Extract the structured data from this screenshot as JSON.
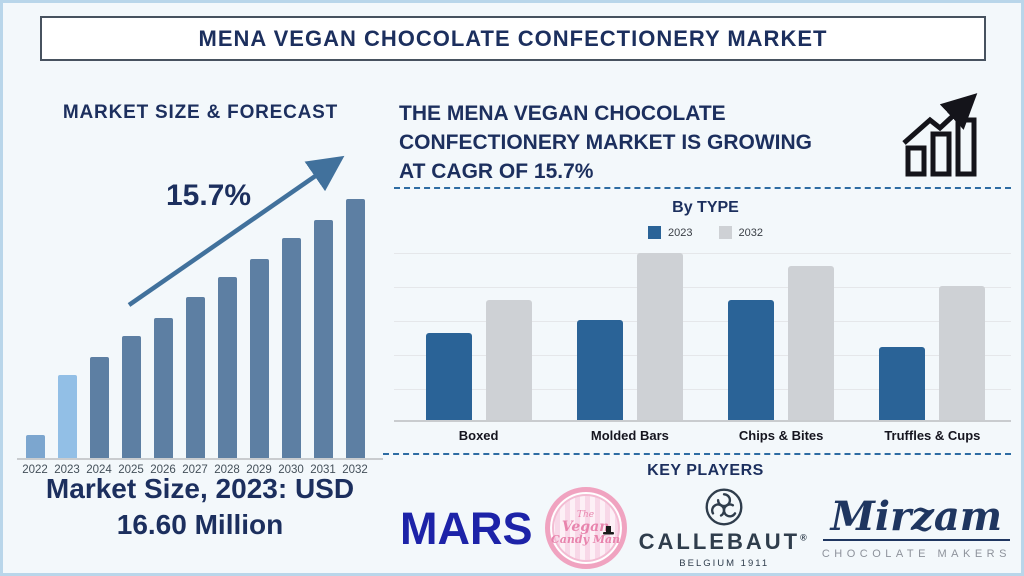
{
  "page": {
    "title": "MENA VEGAN CHOCOLATE CONFECTIONERY MARKET"
  },
  "colors": {
    "bg": "#f3f8fb",
    "frame": "#b9d6ea",
    "navy": "#1c2f5e",
    "axis": "#c9cccf",
    "grid": "#e5e7ea",
    "dash": "#2d6ca3",
    "arrow": "#41719c",
    "year_label": "#44505a",
    "cat_label": "#15151f",
    "mars_blue": "#1d23a8",
    "pink": "#f0a3c0",
    "pink_text": "#e884ad",
    "callebaut": "#2f3d4c",
    "mirzam_navy": "#1f3660",
    "makers_gray": "#8d929b",
    "icon_black": "#14141a"
  },
  "right_panel": {
    "heading_lines": [
      "THE MENA VEGAN CHOCOLATE",
      "CONFECTIONERY MARKET IS GROWING",
      "AT CAGR OF 15.7%"
    ],
    "key_players": {
      "heading": "KEY PLAYERS",
      "mars": {
        "name": "MARS",
        "wordmark": "MARS"
      },
      "vegan_candy_man": {
        "name": "The Vegan Candy Man",
        "lines": [
          "The",
          "Vegan",
          "Candy Man"
        ]
      },
      "callebaut": {
        "name": "CALLEBAUT",
        "wordmark": "CALLEBAUT",
        "registered": "®",
        "subtitle": "BELGIUM 1911"
      },
      "mirzam": {
        "name": "Mirzam",
        "wordmark": "Mirzam",
        "subtitle": "CHOCOLATE MAKERS"
      }
    }
  },
  "chart_data": [
    {
      "type": "bar",
      "title": "MARKET SIZE & FORECAST",
      "annotation": "15.7%",
      "caption_line1": "Market Size, 2023: USD",
      "caption_line2": "16.60 Million",
      "known_values": {
        "2023_usd_million": 16.6,
        "cagr_percent": 15.7
      },
      "categories": [
        "2022",
        "2023",
        "2024",
        "2025",
        "2026",
        "2027",
        "2028",
        "2029",
        "2030",
        "2031",
        "2032"
      ],
      "values_relative": [
        9,
        32,
        39,
        47,
        54,
        62,
        70,
        77,
        85,
        92,
        100
      ],
      "bar_colors": [
        "#7ca6cf",
        "#92bfe6",
        "#5d7fa3",
        "#5d7fa3",
        "#5d7fa3",
        "#5d7fa3",
        "#5d7fa3",
        "#5d7fa3",
        "#5d7fa3",
        "#5d7fa3",
        "#5d7fa3"
      ],
      "ylabel": "",
      "xlabel": "",
      "note": "y-axis unlabeled; values are relative bar heights (2032 = 100)"
    },
    {
      "type": "bar",
      "title": "By TYPE",
      "categories": [
        "Boxed",
        "Molded Bars",
        "Chips & Bites",
        "Truffles & Cups"
      ],
      "series": [
        {
          "name": "2023",
          "color": "#2a6397",
          "values_relative": [
            52,
            60,
            72,
            44
          ]
        },
        {
          "name": "2032",
          "color": "#ced1d5",
          "values_relative": [
            72,
            100,
            92,
            80
          ]
        }
      ],
      "legend_position": "top",
      "grid": true,
      "ylabel": "",
      "xlabel": "",
      "note": "y-axis unlabeled; values are relative bar heights (Molded Bars 2032 = 100)"
    }
  ]
}
